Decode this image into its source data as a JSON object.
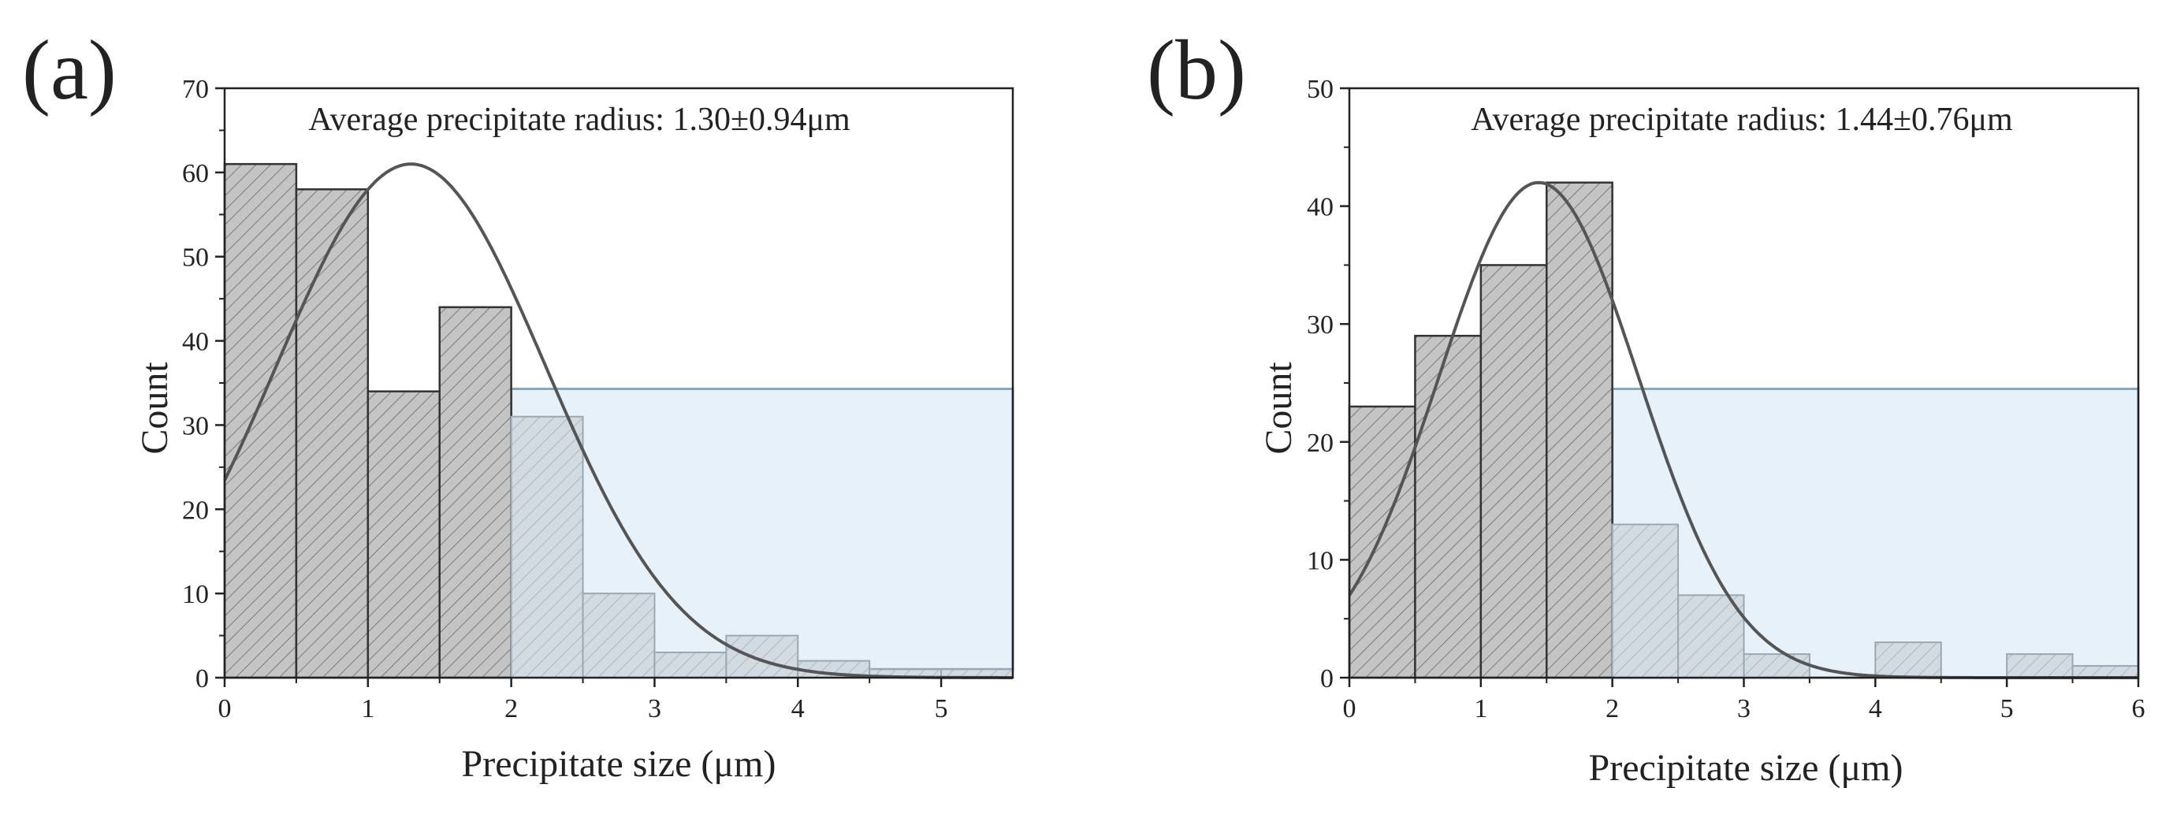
{
  "chart_data": [
    {
      "panel_label": "(a)",
      "type": "bar",
      "title": "Average precipitate radius: 1.30±0.94μm",
      "xlabel": "Precipitate size (μm)",
      "ylabel": "Count",
      "xlim": [
        0,
        5.5
      ],
      "ylim": [
        0,
        70
      ],
      "xticks": [
        0,
        1,
        2,
        3,
        4,
        5
      ],
      "xtick_labels": [
        "0",
        "1",
        "2",
        "3",
        "4",
        "5"
      ],
      "yticks": [
        0,
        10,
        20,
        30,
        40,
        50,
        60,
        70
      ],
      "ytick_labels": [
        "0",
        "10",
        "20",
        "30",
        "40",
        "50",
        "60",
        "70"
      ],
      "bin_width": 0.5,
      "bins": [
        0,
        0.5,
        1,
        1.5,
        2,
        2.5,
        3,
        3.5,
        4,
        4.5,
        5
      ],
      "values": [
        61,
        58,
        34,
        44,
        31,
        10,
        3,
        5,
        2,
        1,
        1
      ],
      "fit_curve": {
        "type": "normal",
        "peak_x": 1.3,
        "peak_y": 61,
        "sigma": 0.94
      },
      "highlight_region": {
        "x_from": 2,
        "x_to": 5.5,
        "y_from": 1,
        "y_to": 34.3
      },
      "dark_bar_color": "#c4c4c4",
      "light_bar_color": "#d2dbe2",
      "highlight_fill": "#e6f1f9",
      "highlight_stroke": "#8aa6bb",
      "curve_color": "#555555"
    },
    {
      "panel_label": "(b)",
      "type": "bar",
      "title": "Average precipitate radius: 1.44±0.76μm",
      "xlabel": "Precipitate size (μm)",
      "ylabel": "Count",
      "xlim": [
        0,
        6
      ],
      "ylim": [
        0,
        50
      ],
      "xticks": [
        0,
        1,
        2,
        3,
        4,
        5,
        6
      ],
      "xtick_labels": [
        "0",
        "1",
        "2",
        "3",
        "4",
        "5",
        "6"
      ],
      "yticks": [
        0,
        10,
        20,
        30,
        40,
        50
      ],
      "ytick_labels": [
        "0",
        "10",
        "20",
        "30",
        "40",
        "50"
      ],
      "bin_width": 0.5,
      "bins": [
        0,
        0.5,
        1,
        1.5,
        2,
        2.5,
        3,
        3.5,
        4,
        4.5,
        5,
        5.5
      ],
      "values": [
        23,
        29,
        35,
        42,
        13,
        7,
        2,
        0,
        3,
        0,
        2,
        1
      ],
      "fit_curve": {
        "type": "normal",
        "peak_x": 1.44,
        "peak_y": 42,
        "sigma": 0.76
      },
      "highlight_region": {
        "x_from": 2,
        "x_to": 6,
        "y_from": 0,
        "y_to": 24.5
      },
      "dark_bar_color": "#c4c4c4",
      "light_bar_color": "#d2dbe2",
      "highlight_fill": "#e6f1f9",
      "highlight_stroke": "#8aa6bb",
      "curve_color": "#555555"
    }
  ]
}
